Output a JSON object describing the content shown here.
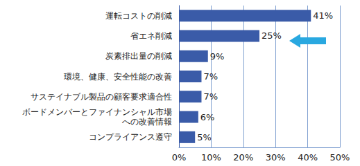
{
  "chart_data": {
    "type": "bar",
    "orientation": "horizontal",
    "categories": [
      "運転コストの削減",
      "省エネ削減",
      "炭素排出量の削減",
      "環境、健康、安全性能の改善",
      "サステイナブル製品の顧客要求適合性",
      "ボードメンバーとファイナンシャル市場\nへの改善情報",
      "コンプライアンス遵守"
    ],
    "values": [
      41,
      25,
      9,
      7,
      7,
      6,
      5
    ],
    "value_labels": [
      "41%",
      "25%",
      "9%",
      "7%",
      "7%",
      "6%",
      "5%"
    ],
    "data_labels": true,
    "color": "#3a5ba8",
    "xlim": [
      0,
      50
    ],
    "xticks": [
      {
        "value": 0,
        "label": "0%"
      },
      {
        "value": 10,
        "label": "10%"
      },
      {
        "value": 20,
        "label": "20%"
      },
      {
        "value": 30,
        "label": "30%"
      },
      {
        "value": 40,
        "label": "40%"
      },
      {
        "value": 50,
        "label": "50%"
      }
    ],
    "grid": true
  }
}
